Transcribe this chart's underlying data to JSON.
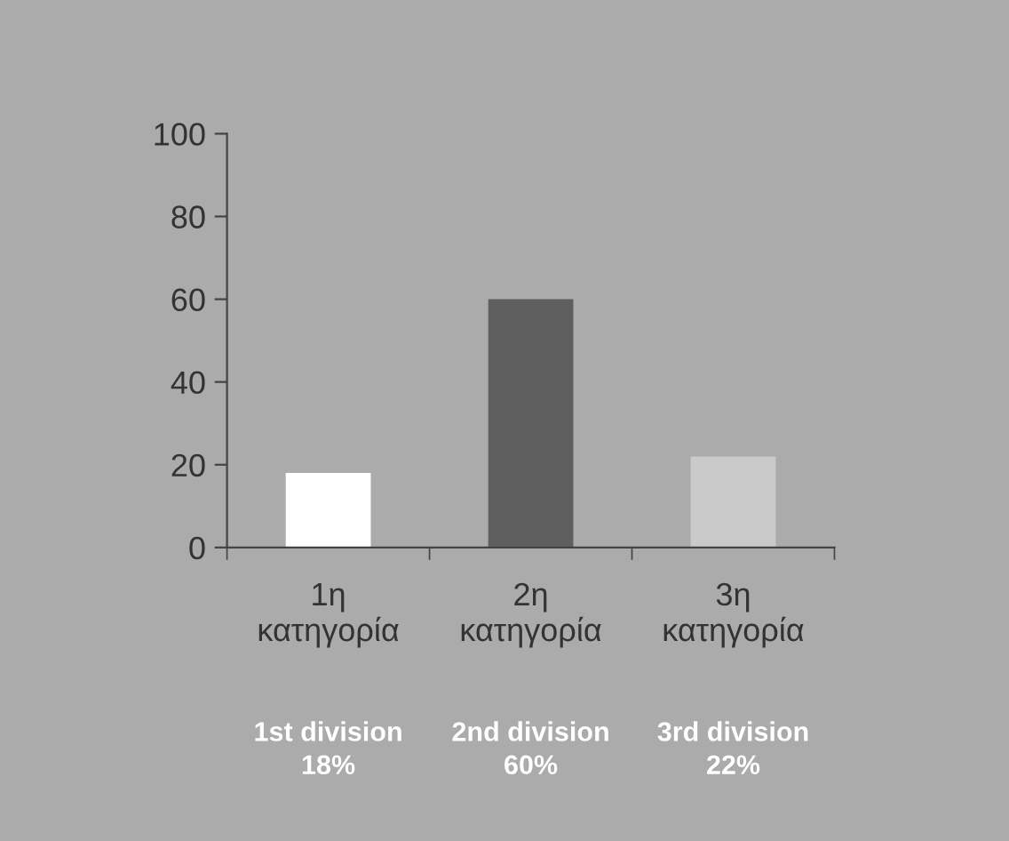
{
  "chart_data": {
    "type": "bar",
    "categories": [
      "1η\nκατηγορία",
      "2η\nκατηγορία",
      "3η\nκατηγορία"
    ],
    "values": [
      18,
      60,
      22
    ],
    "colors": [
      "#ffffff",
      "#5f5f5f",
      "#cacaca"
    ],
    "value_labels": [
      "1st division\n18%",
      "2nd division\n60%",
      "3rd division\n22%"
    ],
    "ylim": [
      0,
      100
    ],
    "yticks": [
      0,
      20,
      40,
      60,
      80,
      100
    ],
    "grid": false,
    "legend": false
  }
}
